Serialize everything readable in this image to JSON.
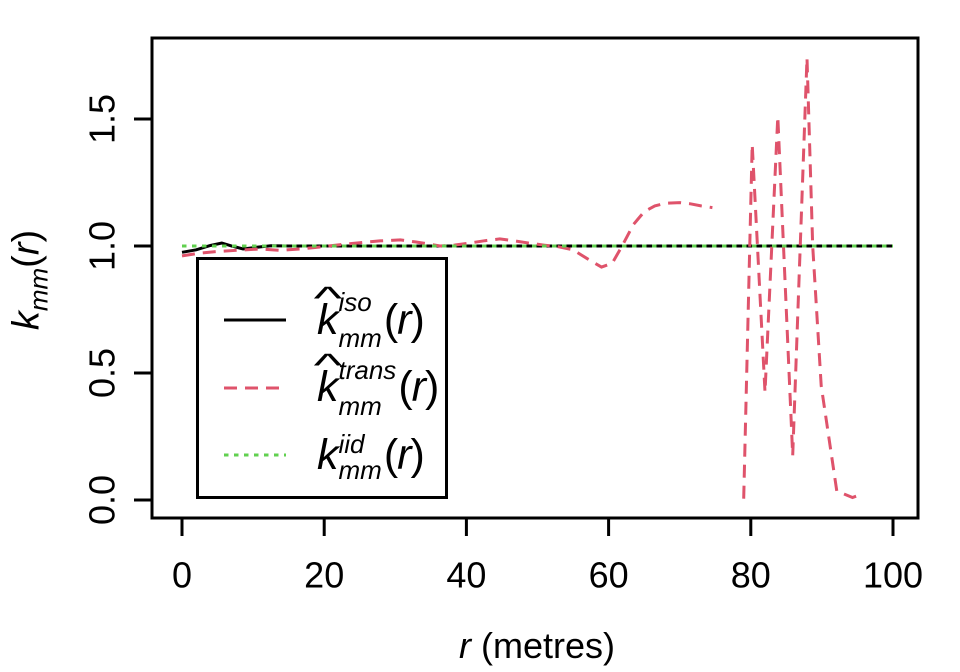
{
  "figure": {
    "background": "#ffffff",
    "xlabel": {
      "var": "r",
      "rest": " (metres)"
    },
    "ylabel": {
      "base": "k",
      "sub": "mm",
      "open": "(",
      "var": "r",
      "close": ")"
    }
  },
  "chart_data": {
    "type": "line",
    "title": "",
    "xlabel": "r (metres)",
    "ylabel": "k_mm(r)",
    "grid": false,
    "legend_position": "bottom-left-inside",
    "xlim": [
      0,
      100
    ],
    "ylim": [
      0,
      1.75
    ],
    "x_ticks": [
      0,
      20,
      40,
      60,
      80,
      100
    ],
    "x_tick_labels": [
      "0",
      "20",
      "40",
      "60",
      "80",
      "100"
    ],
    "y_ticks": [
      0.0,
      0.5,
      1.0,
      1.5
    ],
    "y_tick_labels": [
      "0.0",
      "0.5",
      "1.0",
      "1.5"
    ],
    "series": [
      {
        "name": "kmm-iso",
        "label": "khat_mm^iso(r)",
        "color": "#000000",
        "linestyle": "solid",
        "segments": [
          [
            [
              0,
              0.975
            ],
            [
              2,
              0.985
            ],
            [
              4,
              1.002
            ],
            [
              5.6,
              1.012
            ],
            [
              7,
              1.0
            ],
            [
              8.6,
              0.988
            ],
            [
              10.5,
              0.995
            ],
            [
              12.5,
              1.001
            ],
            [
              15,
              1.0
            ],
            [
              100,
              1.0
            ]
          ]
        ]
      },
      {
        "name": "kmm-trans",
        "label": "khat_mm^trans(r)",
        "color": "#DF536B",
        "linestyle": "dashed",
        "segments": [
          [
            [
              0,
              0.961
            ],
            [
              2.5,
              0.972
            ],
            [
              5.3,
              0.979
            ],
            [
              8.2,
              0.984
            ],
            [
              11,
              0.988
            ],
            [
              13.8,
              0.983
            ],
            [
              16.6,
              0.988
            ],
            [
              19.4,
              0.996
            ],
            [
              22.2,
              1.005
            ],
            [
              25,
              1.013
            ],
            [
              27.8,
              1.02
            ],
            [
              30.7,
              1.024
            ],
            [
              32.8,
              1.016
            ],
            [
              34.9,
              1.007
            ],
            [
              36.3,
              1.0
            ],
            [
              38.4,
              1.004
            ],
            [
              40.5,
              1.012
            ],
            [
              42.6,
              1.021
            ],
            [
              44.7,
              1.028
            ],
            [
              46.8,
              1.02
            ],
            [
              48.9,
              1.011
            ],
            [
              51,
              1.003
            ],
            [
              53,
              0.997
            ],
            [
              55,
              0.985
            ],
            [
              57,
              0.95
            ],
            [
              59,
              0.917
            ],
            [
              60.5,
              0.932
            ],
            [
              62,
              1.005
            ],
            [
              63.5,
              1.085
            ],
            [
              65,
              1.135
            ],
            [
              66.5,
              1.158
            ],
            [
              68,
              1.168
            ],
            [
              70,
              1.171
            ],
            [
              71.5,
              1.166
            ],
            [
              73,
              1.158
            ],
            [
              74.6,
              1.151
            ]
          ],
          [
            [
              79.0,
              0.005
            ],
            [
              80.2,
              1.4
            ],
            [
              82.0,
              0.425
            ],
            [
              83.8,
              1.51
            ],
            [
              85.9,
              0.175
            ],
            [
              87.9,
              1.74
            ],
            [
              88.7,
              1.0
            ],
            [
              89.9,
              0.45
            ],
            [
              92.1,
              0.035
            ],
            [
              94.3,
              0.01
            ],
            [
              95.3,
              0.02
            ]
          ]
        ]
      },
      {
        "name": "kmm-iid",
        "label": "k_mm^iid(r)",
        "color": "#61D04F",
        "linestyle": "dotted",
        "segments": [
          [
            [
              0,
              1.0
            ],
            [
              100,
              1.0
            ]
          ]
        ]
      }
    ],
    "legend": {
      "entries": [
        {
          "name": "kmm-iso",
          "hat": true,
          "base": "k",
          "sup": "iso",
          "sub": "mm",
          "open": "(",
          "var": "r",
          "close": ")",
          "color": "#000000",
          "linestyle": "solid"
        },
        {
          "name": "kmm-trans",
          "hat": true,
          "base": "k",
          "sup": "trans",
          "sub": "mm",
          "open": "(",
          "var": "r",
          "close": ")",
          "color": "#DF536B",
          "linestyle": "dashed"
        },
        {
          "name": "kmm-iid",
          "hat": false,
          "base": "k",
          "sup": "iid",
          "sub": "mm",
          "open": "(",
          "var": "r",
          "close": ")",
          "color": "#61D04F",
          "linestyle": "dotted"
        }
      ]
    }
  }
}
